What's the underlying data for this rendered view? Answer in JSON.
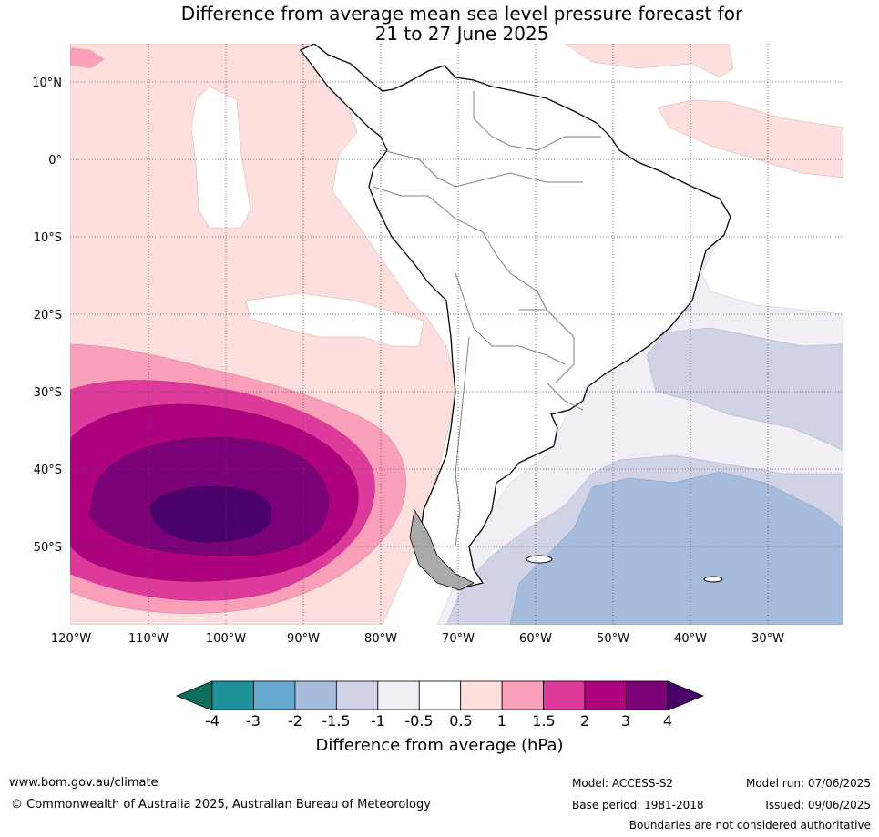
{
  "title": {
    "line1": "Difference from average mean sea level pressure forecast for",
    "line2": "21 to 27 June 2025"
  },
  "map": {
    "latitude_labels": [
      "10°N",
      "0°",
      "10°S",
      "20°S",
      "30°S",
      "40°S",
      "50°S"
    ],
    "longitude_labels": [
      "120°W",
      "110°W",
      "100°W",
      "90°W",
      "80°W",
      "70°W",
      "60°W",
      "50°W",
      "40°W",
      "30°W"
    ]
  },
  "colorbar": {
    "title": "Difference from average (hPa)",
    "ticks": [
      "-4",
      "-3",
      "-2",
      "-1.5",
      "-1",
      "-0.5",
      "0.5",
      "1",
      "1.5",
      "2",
      "3",
      "4"
    ],
    "colors": [
      "#0e6e5e",
      "#1f9299",
      "#66aad2",
      "#a6bcdc",
      "#d0d2e6",
      "#f1eef5",
      "#ffffff",
      "#fddfdd",
      "#f99fb9",
      "#de3a9b",
      "#ae017e",
      "#7a0177",
      "#4a006a"
    ]
  },
  "footer": {
    "website": "www.bom.gov.au/climate",
    "copyright": "© Commonwealth of Australia 2025, Australian Bureau of Meteorology",
    "model": "Model: ACCESS-S2",
    "base_period": "Base period: 1981-2018",
    "model_run": "Model run: 07/06/2025",
    "issued": "Issued: 09/06/2025",
    "disclaimer": "Boundaries are not considered authoritative"
  }
}
